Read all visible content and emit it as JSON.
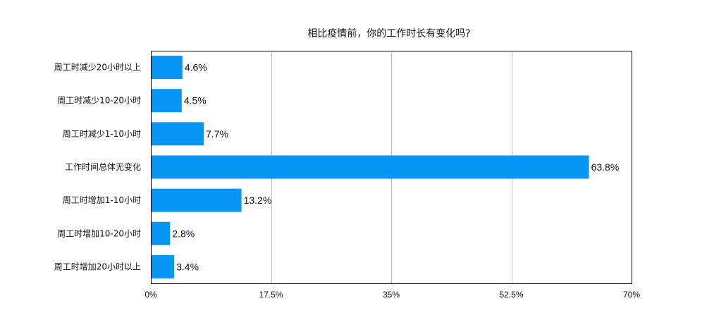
{
  "chart_data": {
    "type": "bar",
    "orientation": "horizontal",
    "title": "相比疫情前，你的工作时长有变化吗?",
    "categories": [
      "周工时减少20小时以上",
      "周工时减少10-20小时",
      "周工时减少1-10小时",
      "工作时间总体无变化",
      "周工时增加1-10小时",
      "周工时增加10-20小时",
      "周工时增加20小时以上"
    ],
    "values": [
      4.6,
      4.5,
      7.7,
      63.8,
      13.2,
      2.8,
      3.4
    ],
    "value_labels": [
      "4.6%",
      "4.5%",
      "7.7%",
      "63.8%",
      "13.2%",
      "2.8%",
      "3.4%"
    ],
    "xlim": [
      0,
      70
    ],
    "ticks": [
      0,
      17.5,
      35,
      52.5,
      70
    ],
    "tick_labels": [
      "0%",
      "17.5%",
      "35%",
      "52.5%",
      "70%"
    ],
    "grid": true,
    "legend": "none",
    "bar_color": "#0a96f5"
  }
}
